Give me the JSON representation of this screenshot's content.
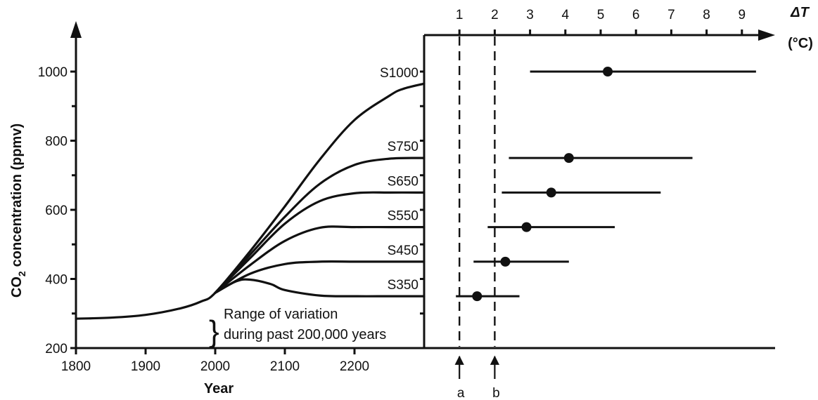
{
  "chart_data": [
    {
      "type": "line",
      "xlabel": "Year",
      "ylabel_main": "CO",
      "ylabel_sub": "2",
      "ylabel_rest": "concentration (ppmv)",
      "xlim": [
        1800,
        2300
      ],
      "ylim": [
        200,
        1000
      ],
      "x_ticks": [
        1800,
        1900,
        2000,
        2100,
        2200
      ],
      "y_ticks": [
        200,
        400,
        600,
        800,
        1000
      ],
      "grid": false,
      "annotation_line1": "Range of variation",
      "annotation_line2": "during past 200,000 years",
      "annotation_brace": "}",
      "annotation_range": [
        190,
        290
      ],
      "series": [
        {
          "name": "S1000",
          "x": [
            1800,
            1850,
            1900,
            1950,
            1980,
            2000,
            2050,
            2100,
            2150,
            2200,
            2250,
            2270,
            2300
          ],
          "y": [
            285,
            288,
            296,
            315,
            335,
            360,
            480,
            610,
            745,
            860,
            930,
            950,
            965
          ]
        },
        {
          "name": "S750",
          "x": [
            2000,
            2050,
            2100,
            2150,
            2200,
            2250,
            2300
          ],
          "y": [
            360,
            470,
            580,
            675,
            730,
            748,
            750
          ]
        },
        {
          "name": "S650",
          "x": [
            2000,
            2050,
            2100,
            2150,
            2200,
            2250,
            2300
          ],
          "y": [
            360,
            460,
            560,
            625,
            648,
            650,
            650
          ]
        },
        {
          "name": "S550",
          "x": [
            2000,
            2050,
            2100,
            2150,
            2200,
            2250,
            2300
          ],
          "y": [
            360,
            440,
            510,
            548,
            550,
            550,
            550
          ]
        },
        {
          "name": "S450",
          "x": [
            2000,
            2050,
            2100,
            2150,
            2200,
            2250,
            2300
          ],
          "y": [
            360,
            415,
            443,
            450,
            450,
            450,
            450
          ]
        },
        {
          "name": "S350",
          "x": [
            2000,
            2030,
            2050,
            2080,
            2100,
            2150,
            2200,
            2250,
            2300
          ],
          "y": [
            360,
            393,
            398,
            385,
            368,
            352,
            350,
            350,
            350
          ]
        }
      ]
    },
    {
      "type": "scatter",
      "xlabel_symbol": "ΔT",
      "xlabel_unit": "(°C)",
      "xlim": [
        0,
        9.5
      ],
      "x_ticks": [
        1,
        2,
        3,
        4,
        5,
        6,
        7,
        8,
        9
      ],
      "grid": false,
      "series": [
        {
          "name": "S1000",
          "y": 1000,
          "mean": 5.2,
          "low": 3.0,
          "high": 9.4
        },
        {
          "name": "S750",
          "y": 750,
          "mean": 4.1,
          "low": 2.4,
          "high": 7.6
        },
        {
          "name": "S650",
          "y": 650,
          "mean": 3.6,
          "low": 2.2,
          "high": 6.7
        },
        {
          "name": "S550",
          "y": 550,
          "mean": 2.9,
          "low": 1.8,
          "high": 5.4
        },
        {
          "name": "S450",
          "y": 450,
          "mean": 2.3,
          "low": 1.4,
          "high": 4.1
        },
        {
          "name": "S350",
          "y": 350,
          "mean": 1.5,
          "low": 0.9,
          "high": 2.7
        }
      ],
      "reference_lines": [
        {
          "label": "a",
          "x": 1
        },
        {
          "label": "b",
          "x": 2
        }
      ]
    }
  ]
}
